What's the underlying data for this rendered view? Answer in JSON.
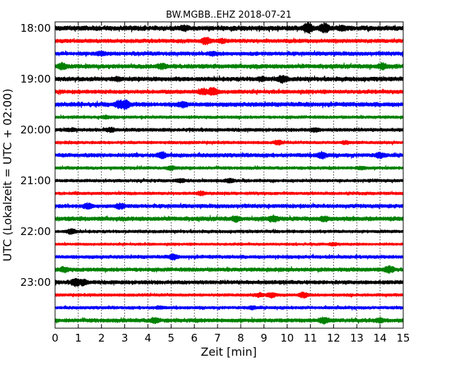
{
  "chart_data": {
    "type": "line",
    "title": "BW.MGBB..EHZ 2018-07-21",
    "xlabel": "Zeit  [min]",
    "ylabel": "UTC (Lokalzeit = UTC + 02:00)",
    "xlim": [
      0,
      15
    ],
    "x_ticks": [
      "0",
      "1",
      "2",
      "3",
      "4",
      "5",
      "6",
      "7",
      "8",
      "9",
      "10",
      "11",
      "12",
      "13",
      "14",
      "15"
    ],
    "y_tick_labels": [
      "18:00",
      "19:00",
      "20:00",
      "21:00",
      "22:00",
      "23:00"
    ],
    "grid": "vertical dotted at each minute",
    "trace_colors": [
      "#000000",
      "#ff0000",
      "#0000ff",
      "#008000"
    ],
    "series": [
      {
        "row_label": "18:00",
        "color_index": 0,
        "amplitude": 0.55,
        "bursts": [
          [
            5.6,
            0.5
          ],
          [
            10.9,
            1.0
          ],
          [
            11.6,
            0.9
          ],
          [
            12.4,
            0.5
          ]
        ]
      },
      {
        "row_label": "18:15",
        "color_index": 1,
        "amplitude": 0.45,
        "bursts": [
          [
            6.5,
            0.7
          ],
          [
            7.2,
            0.4
          ]
        ]
      },
      {
        "row_label": "18:30",
        "color_index": 2,
        "amplitude": 0.45,
        "bursts": [
          [
            2.0,
            0.4
          ],
          [
            6.8,
            0.4
          ]
        ]
      },
      {
        "row_label": "18:45",
        "color_index": 3,
        "amplitude": 0.5,
        "bursts": [
          [
            0.3,
            0.6
          ],
          [
            4.6,
            0.5
          ],
          [
            14.1,
            0.6
          ]
        ]
      },
      {
        "row_label": "19:00",
        "color_index": 0,
        "amplitude": 0.5,
        "bursts": [
          [
            2.7,
            0.4
          ],
          [
            9.8,
            0.7
          ],
          [
            8.9,
            0.4
          ]
        ]
      },
      {
        "row_label": "19:15",
        "color_index": 1,
        "amplitude": 0.45,
        "bursts": [
          [
            6.8,
            0.8
          ],
          [
            6.4,
            0.6
          ]
        ]
      },
      {
        "row_label": "19:30",
        "color_index": 2,
        "amplitude": 0.5,
        "bursts": [
          [
            2.8,
            0.8
          ],
          [
            3.0,
            0.9
          ],
          [
            5.5,
            0.6
          ]
        ]
      },
      {
        "row_label": "19:45",
        "color_index": 3,
        "amplitude": 0.35,
        "bursts": [
          [
            2.2,
            0.3
          ]
        ]
      },
      {
        "row_label": "20:00",
        "color_index": 0,
        "amplitude": 0.4,
        "bursts": [
          [
            0.7,
            0.3
          ],
          [
            2.4,
            0.4
          ],
          [
            11.2,
            0.4
          ]
        ]
      },
      {
        "row_label": "20:15",
        "color_index": 1,
        "amplitude": 0.35,
        "bursts": [
          [
            9.6,
            0.4
          ],
          [
            12.5,
            0.3
          ]
        ]
      },
      {
        "row_label": "20:30",
        "color_index": 2,
        "amplitude": 0.45,
        "bursts": [
          [
            4.6,
            0.6
          ],
          [
            11.5,
            0.6
          ],
          [
            14.0,
            0.5
          ]
        ]
      },
      {
        "row_label": "20:45",
        "color_index": 3,
        "amplitude": 0.35,
        "bursts": [
          [
            5.0,
            0.4
          ],
          [
            13.2,
            0.3
          ]
        ]
      },
      {
        "row_label": "21:00",
        "color_index": 0,
        "amplitude": 0.35,
        "bursts": [
          [
            5.4,
            0.4
          ],
          [
            7.5,
            0.4
          ]
        ]
      },
      {
        "row_label": "21:15",
        "color_index": 1,
        "amplitude": 0.35,
        "bursts": [
          [
            6.3,
            0.4
          ]
        ]
      },
      {
        "row_label": "21:30",
        "color_index": 2,
        "amplitude": 0.45,
        "bursts": [
          [
            1.4,
            0.5
          ],
          [
            2.8,
            0.5
          ]
        ]
      },
      {
        "row_label": "21:45",
        "color_index": 3,
        "amplitude": 0.5,
        "bursts": [
          [
            9.4,
            0.6
          ],
          [
            11.6,
            0.5
          ],
          [
            7.8,
            0.5
          ]
        ]
      },
      {
        "row_label": "22:00",
        "color_index": 0,
        "amplitude": 0.35,
        "bursts": [
          [
            0.7,
            0.5
          ]
        ]
      },
      {
        "row_label": "22:15",
        "color_index": 1,
        "amplitude": 0.3,
        "bursts": [
          [
            12.0,
            0.3
          ]
        ]
      },
      {
        "row_label": "22:30",
        "color_index": 2,
        "amplitude": 0.4,
        "bursts": [
          [
            5.1,
            0.5
          ]
        ]
      },
      {
        "row_label": "22:45",
        "color_index": 3,
        "amplitude": 0.45,
        "bursts": [
          [
            0.4,
            0.5
          ],
          [
            14.4,
            0.7
          ]
        ]
      },
      {
        "row_label": "23:00",
        "color_index": 0,
        "amplitude": 0.45,
        "bursts": [
          [
            0.9,
            0.8
          ],
          [
            1.2,
            0.6
          ]
        ]
      },
      {
        "row_label": "23:15",
        "color_index": 1,
        "amplitude": 0.35,
        "bursts": [
          [
            9.3,
            0.5
          ],
          [
            10.7,
            0.5
          ],
          [
            8.8,
            0.4
          ]
        ]
      },
      {
        "row_label": "23:30",
        "color_index": 2,
        "amplitude": 0.35,
        "bursts": [
          [
            4.5,
            0.3
          ],
          [
            8.5,
            0.3
          ]
        ]
      },
      {
        "row_label": "23:45",
        "color_index": 3,
        "amplitude": 0.45,
        "bursts": [
          [
            4.3,
            0.5
          ],
          [
            11.6,
            0.6
          ],
          [
            14.0,
            0.4
          ]
        ]
      }
    ]
  }
}
